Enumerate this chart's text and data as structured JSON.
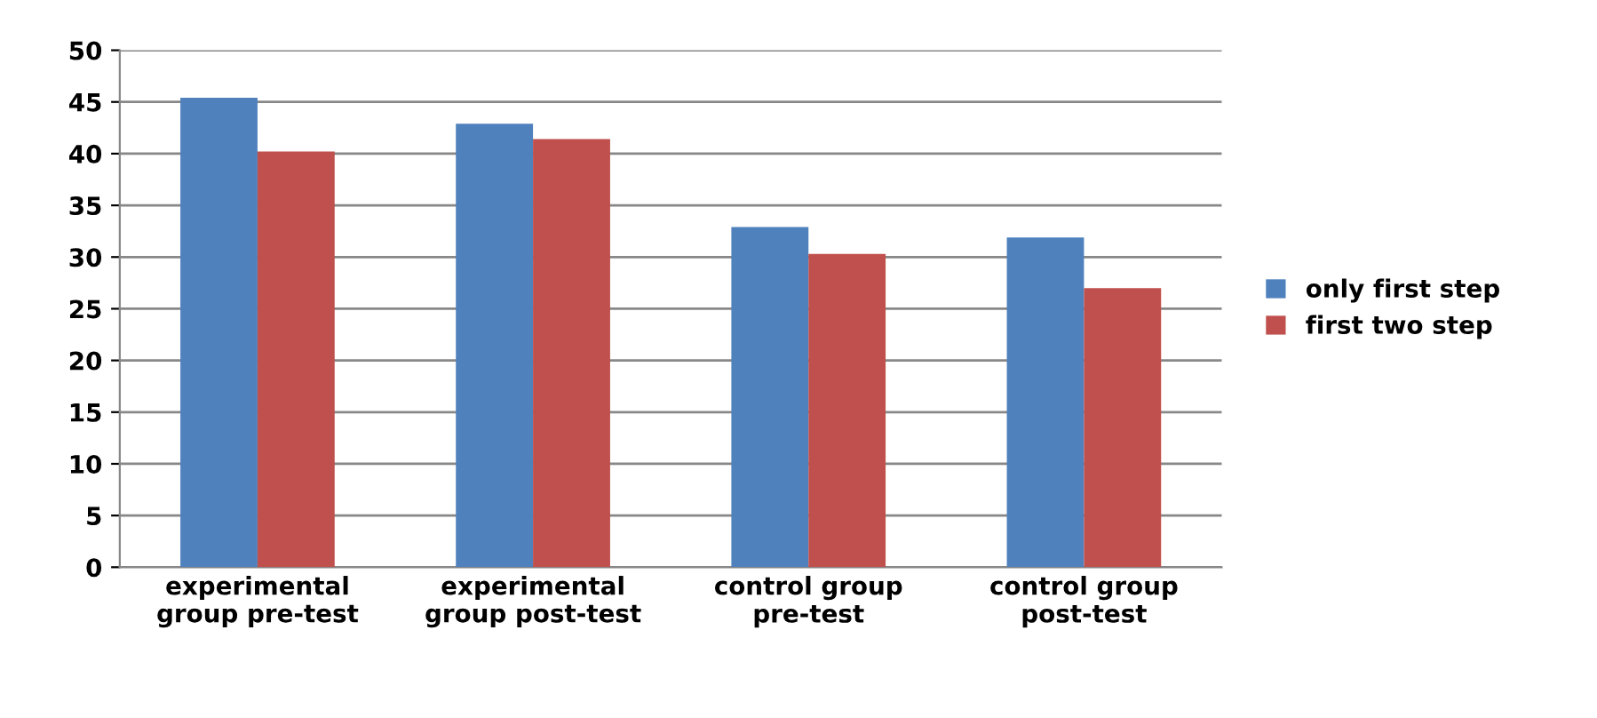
{
  "chart_data": {
    "type": "bar",
    "categories": [
      "experimental group pre-test",
      "experimental group post-test",
      "control group pre-test",
      "control group post-test"
    ],
    "series": [
      {
        "name": "only first step",
        "color": "#4f81bd",
        "values": [
          45.4,
          42.9,
          32.9,
          31.9
        ]
      },
      {
        "name": "first two step",
        "color": "#c0504d",
        "values": [
          40.2,
          41.4,
          30.3,
          27.0
        ]
      }
    ],
    "ylim": [
      0,
      50
    ],
    "yticks": [
      0,
      5,
      10,
      15,
      20,
      25,
      30,
      35,
      40,
      45,
      50
    ],
    "grid": "y",
    "legend": "right"
  }
}
